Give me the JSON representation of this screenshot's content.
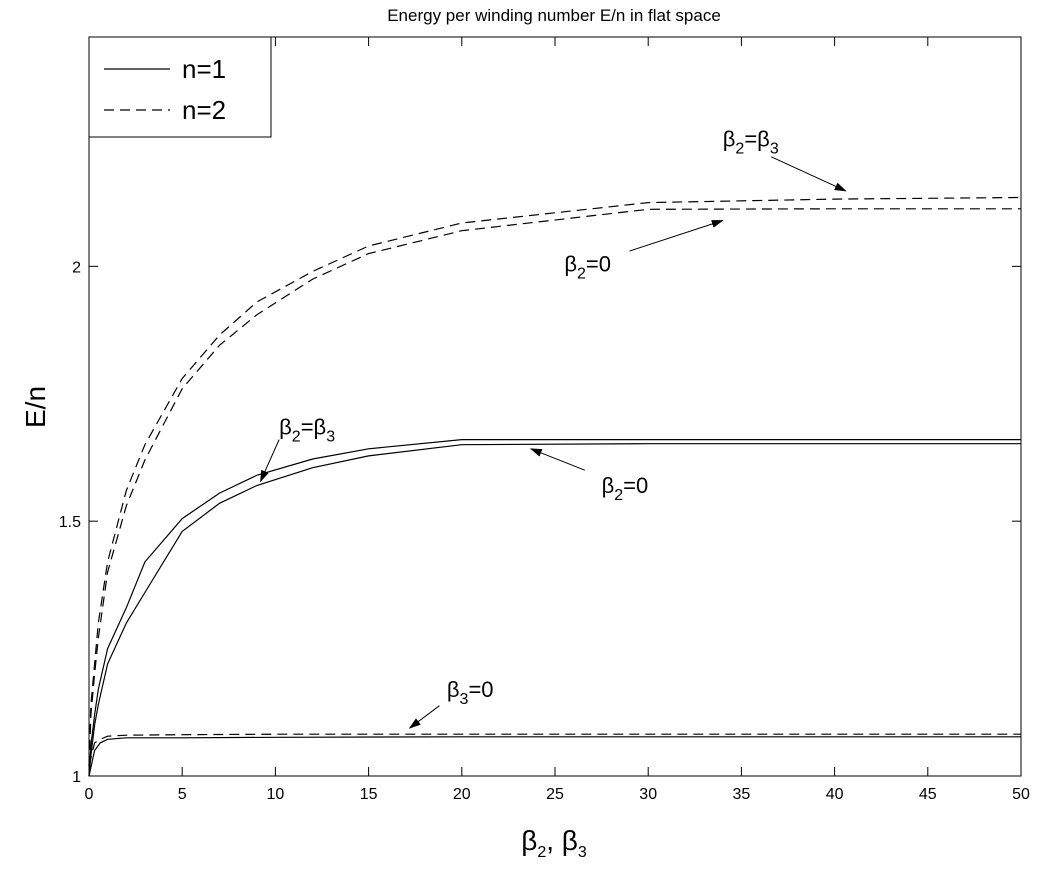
{
  "chart_data": {
    "type": "line",
    "title": "Energy per winding number E/n in flat space",
    "xlabel": {
      "parts": [
        [
          "β",
          ""
        ],
        [
          "2",
          "sub"
        ],
        [
          ", β",
          ""
        ],
        [
          "3",
          "sub"
        ]
      ]
    },
    "ylabel": "E/n",
    "xlim": [
      0,
      50
    ],
    "ylim": [
      1,
      2.45
    ],
    "x_ticks": [
      0,
      5,
      10,
      15,
      20,
      25,
      30,
      35,
      40,
      45,
      50
    ],
    "x_tick_labels": [
      "0",
      "5",
      "10",
      "15",
      "20",
      "25",
      "30",
      "35",
      "40",
      "45",
      "50"
    ],
    "y_ticks": [
      1,
      1.5,
      2
    ],
    "y_tick_labels": [
      "1",
      "1.5",
      "2"
    ],
    "grid": false,
    "legend": {
      "position": "top-left",
      "entries": [
        {
          "label": "n=1",
          "style": "solid"
        },
        {
          "label": "n=2",
          "style": "dashed"
        }
      ]
    },
    "series": [
      {
        "legend": "n=1",
        "style": "solid",
        "x": [
          0,
          0.1,
          0.3,
          0.5,
          1,
          2,
          3,
          5,
          7,
          9,
          12,
          15,
          20,
          30,
          40,
          50
        ],
        "y": [
          1.0,
          1.06,
          1.12,
          1.17,
          1.25,
          1.33,
          1.42,
          1.505,
          1.555,
          1.59,
          1.622,
          1.642,
          1.66,
          1.66,
          1.66,
          1.66
        ]
      },
      {
        "legend": "n=1",
        "style": "solid",
        "x": [
          0,
          0.1,
          0.3,
          0.5,
          1,
          2,
          3,
          5,
          7,
          9,
          12,
          15,
          20,
          30,
          40,
          50
        ],
        "y": [
          1.0,
          1.04,
          1.1,
          1.14,
          1.22,
          1.3,
          1.36,
          1.48,
          1.535,
          1.57,
          1.605,
          1.628,
          1.65,
          1.652,
          1.652,
          1.652
        ]
      },
      {
        "legend": "n=2",
        "style": "dashed",
        "x": [
          0,
          0.1,
          0.3,
          0.5,
          1,
          2,
          3,
          5,
          7,
          9,
          12,
          15,
          20,
          30,
          40,
          50
        ],
        "y": [
          1.02,
          1.14,
          1.22,
          1.3,
          1.42,
          1.56,
          1.65,
          1.78,
          1.865,
          1.93,
          1.99,
          2.04,
          2.085,
          2.125,
          2.132,
          2.135
        ]
      },
      {
        "legend": "n=2",
        "style": "dashed",
        "x": [
          0,
          0.1,
          0.3,
          0.5,
          1,
          2,
          3,
          5,
          7,
          9,
          12,
          15,
          20,
          30,
          40,
          50
        ],
        "y": [
          1.02,
          1.12,
          1.2,
          1.27,
          1.4,
          1.53,
          1.62,
          1.76,
          1.845,
          1.905,
          1.975,
          2.025,
          2.07,
          2.112,
          2.113,
          2.113
        ]
      },
      {
        "legend": "n=1",
        "style": "solid",
        "x": [
          0,
          0.3,
          0.6,
          1,
          2,
          5,
          10,
          20,
          30,
          40,
          50
        ],
        "y": [
          1.0,
          1.05,
          1.065,
          1.072,
          1.075,
          1.075,
          1.076,
          1.077,
          1.077,
          1.077,
          1.077
        ]
      },
      {
        "legend": "n=2",
        "style": "dashed",
        "x": [
          0,
          0.3,
          0.6,
          1,
          2,
          5,
          10,
          20,
          30,
          40,
          50
        ],
        "y": [
          1.02,
          1.065,
          1.072,
          1.078,
          1.08,
          1.081,
          1.082,
          1.082,
          1.082,
          1.082,
          1.082
        ]
      }
    ],
    "annotations": [
      {
        "parts": [
          [
            "β",
            ""
          ],
          [
            "2",
            "sub"
          ],
          [
            "=β",
            ""
          ],
          [
            "3",
            "sub"
          ]
        ],
        "text_at": [
          34,
          2.235
        ],
        "arrow_from": [
          36.6,
          2.215
        ],
        "arrow_to": [
          40.6,
          2.148
        ]
      },
      {
        "parts": [
          [
            "β",
            ""
          ],
          [
            "2",
            "sub"
          ],
          [
            "=0",
            ""
          ]
        ],
        "text_at": [
          25.5,
          1.99
        ],
        "arrow_from": [
          29.0,
          2.03
        ],
        "arrow_to": [
          34.0,
          2.09
        ]
      },
      {
        "parts": [
          [
            "β",
            ""
          ],
          [
            "2",
            "sub"
          ],
          [
            "=β",
            ""
          ],
          [
            "3",
            "sub"
          ]
        ],
        "text_at": [
          10.2,
          1.67
        ],
        "arrow_from": [
          10.2,
          1.66
        ],
        "arrow_to": [
          9.2,
          1.578
        ]
      },
      {
        "parts": [
          [
            "β",
            ""
          ],
          [
            "2",
            "sub"
          ],
          [
            "=0",
            ""
          ]
        ],
        "text_at": [
          27.5,
          1.555
        ],
        "arrow_from": [
          26.6,
          1.6
        ],
        "arrow_to": [
          23.7,
          1.642
        ]
      },
      {
        "parts": [
          [
            "β",
            ""
          ],
          [
            "3",
            "sub"
          ],
          [
            "=0",
            ""
          ]
        ],
        "text_at": [
          19.2,
          1.155
        ],
        "arrow_from": [
          18.8,
          1.138
        ],
        "arrow_to": [
          17.2,
          1.094
        ]
      }
    ]
  }
}
